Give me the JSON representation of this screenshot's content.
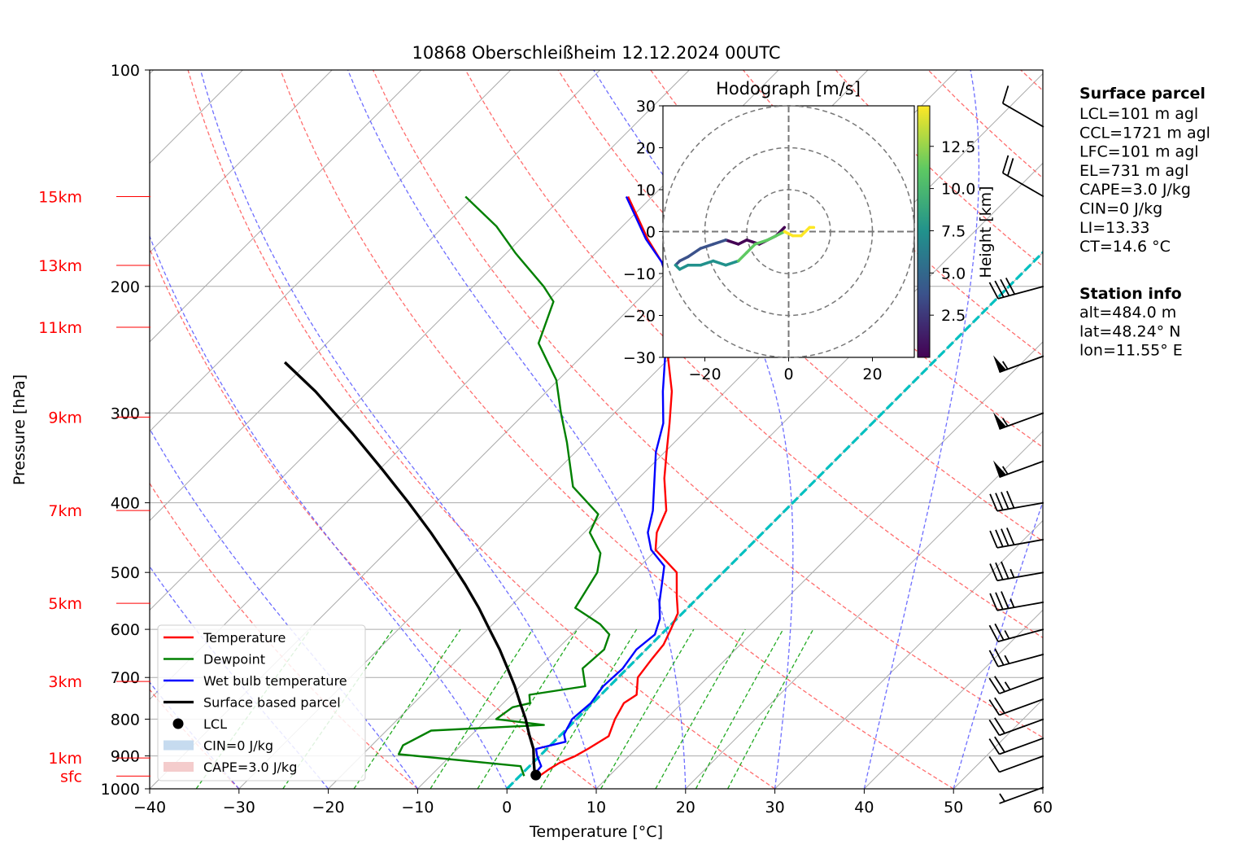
{
  "chart_data": {
    "type": "skew-t",
    "title": "10868 Oberschleißheim 12.12.2024 00UTC",
    "xlabel": "Temperature [°C]",
    "ylabel": "Pressure [hPa]",
    "xlim": [
      -40,
      60
    ],
    "ylim": [
      1000,
      100
    ],
    "x_ticks": [
      "−40",
      "−30",
      "−20",
      "−10",
      "0",
      "10",
      "20",
      "30",
      "40",
      "50",
      "60"
    ],
    "y_ticks": [
      "100",
      "200",
      "300",
      "400",
      "500",
      "600",
      "700",
      "800",
      "900",
      "1000"
    ],
    "y_tick_values": [
      100,
      200,
      300,
      400,
      500,
      600,
      700,
      800,
      900,
      1000
    ],
    "grid": true,
    "height_marks": [
      {
        "label": "15km",
        "p": 150
      },
      {
        "label": "13km",
        "p": 187
      },
      {
        "label": "11km",
        "p": 228
      },
      {
        "label": "9km",
        "p": 304
      },
      {
        "label": "7km",
        "p": 410
      },
      {
        "label": "5km",
        "p": 552
      },
      {
        "label": "3km",
        "p": 709
      },
      {
        "label": "1km",
        "p": 906
      },
      {
        "label": "sfc",
        "p": 960
      }
    ],
    "series": [
      {
        "name": "Temperature",
        "color": "#ff0000",
        "points": [
          [
            2.2,
            960
          ],
          [
            2.5,
            940
          ],
          [
            3.0,
            920
          ],
          [
            4.0,
            900
          ],
          [
            4.6,
            880
          ],
          [
            5.5,
            845
          ],
          [
            4.3,
            800
          ],
          [
            3.5,
            760
          ],
          [
            4.0,
            740
          ],
          [
            2.2,
            700
          ],
          [
            1.7,
            660
          ],
          [
            1.4,
            630
          ],
          [
            0.5,
            600
          ],
          [
            -0.5,
            570
          ],
          [
            -2.5,
            540
          ],
          [
            -5.2,
            500
          ],
          [
            -10.1,
            465
          ],
          [
            -11.9,
            440
          ],
          [
            -13.3,
            410
          ],
          [
            -17.1,
            370
          ],
          [
            -19.8,
            340
          ],
          [
            -22.7,
            310
          ],
          [
            -26.0,
            280
          ],
          [
            -30.4,
            250
          ],
          [
            -34.2,
            220
          ],
          [
            -38.0,
            200
          ],
          [
            -41.6,
            185
          ],
          [
            -45.7,
            172
          ],
          [
            -49.4,
            160
          ],
          [
            -52.7,
            150
          ]
        ]
      },
      {
        "name": "Dewpoint",
        "color": "#008000",
        "points": [
          [
            0.5,
            960
          ],
          [
            -1.0,
            930
          ],
          [
            -16.0,
            895
          ],
          [
            -16.5,
            870
          ],
          [
            -15.0,
            830
          ],
          [
            -3.0,
            815
          ],
          [
            -9.0,
            800
          ],
          [
            -8.5,
            770
          ],
          [
            -7.0,
            760
          ],
          [
            -8.0,
            740
          ],
          [
            -2.7,
            720
          ],
          [
            -5.0,
            680
          ],
          [
            -4.7,
            640
          ],
          [
            -5.8,
            610
          ],
          [
            -8.0,
            590
          ],
          [
            -12.6,
            560
          ],
          [
            -14.1,
            500
          ],
          [
            -15.9,
            470
          ],
          [
            -19.4,
            440
          ],
          [
            -20.5,
            415
          ],
          [
            -26.4,
            380
          ],
          [
            -32.0,
            330
          ],
          [
            -36.0,
            300
          ],
          [
            -40.2,
            270
          ],
          [
            -46.3,
            240
          ],
          [
            -49.3,
            210
          ],
          [
            -52.1,
            200
          ],
          [
            -58.9,
            180
          ],
          [
            -64.1,
            165
          ],
          [
            -70.9,
            150
          ]
        ]
      },
      {
        "name": "Wet bulb temperature",
        "color": "#0000ff",
        "points": [
          [
            1.5,
            960
          ],
          [
            1.3,
            930
          ],
          [
            -0.3,
            900
          ],
          [
            -1.2,
            880
          ],
          [
            1.3,
            860
          ],
          [
            0.3,
            840
          ],
          [
            -0.5,
            800
          ],
          [
            -0.2,
            760
          ],
          [
            -0.7,
            720
          ],
          [
            -0.5,
            680
          ],
          [
            -1.1,
            640
          ],
          [
            -0.7,
            610
          ],
          [
            -1.9,
            580
          ],
          [
            -3.8,
            550
          ],
          [
            -5.5,
            520
          ],
          [
            -7.3,
            490
          ],
          [
            -10.6,
            465
          ],
          [
            -12.9,
            440
          ],
          [
            -14.8,
            410
          ],
          [
            -18.2,
            370
          ],
          [
            -21.0,
            340
          ],
          [
            -23.4,
            310
          ],
          [
            -27.0,
            280
          ],
          [
            -30.7,
            250
          ],
          [
            -34.5,
            220
          ],
          [
            -38.0,
            200
          ],
          [
            -41.6,
            185
          ],
          [
            -45.9,
            172
          ],
          [
            -49.6,
            160
          ],
          [
            -52.9,
            150
          ]
        ]
      },
      {
        "name": "Surface based parcel",
        "color": "#000000",
        "points": [
          [
            1.7,
            960
          ],
          [
            0.1,
            920
          ],
          [
            -1.5,
            880
          ],
          [
            -3.6,
            840
          ],
          [
            -5.7,
            800
          ],
          [
            -8.1,
            760
          ],
          [
            -10.6,
            720
          ],
          [
            -13.4,
            680
          ],
          [
            -16.4,
            640
          ],
          [
            -19.8,
            600
          ],
          [
            -23.4,
            560
          ],
          [
            -27.5,
            520
          ],
          [
            -32.1,
            480
          ],
          [
            -37.2,
            440
          ],
          [
            -43.0,
            400
          ],
          [
            -49.6,
            360
          ],
          [
            -57.1,
            320
          ],
          [
            -65.9,
            280
          ],
          [
            -72.6,
            255
          ]
        ]
      }
    ],
    "legend": [
      {
        "label": "Temperature",
        "kind": "line",
        "color": "#ff0000"
      },
      {
        "label": "Dewpoint",
        "kind": "line",
        "color": "#008000"
      },
      {
        "label": "Wet bulb temperature",
        "kind": "line",
        "color": "#0000ff"
      },
      {
        "label": "Surface based parcel",
        "kind": "line",
        "color": "#000000"
      },
      {
        "label": "LCL",
        "kind": "dot",
        "color": "#000000"
      },
      {
        "label": "CIN=0 J/kg",
        "kind": "patch",
        "color": "#c6dbef"
      },
      {
        "label": "CAPE=3.0 J/kg",
        "kind": "patch",
        "color": "#f4cccc"
      }
    ],
    "legend_position": "lower-left",
    "lcl": {
      "t": 1.7,
      "p": 957
    },
    "zero_isotherm": {
      "color": "#00c0c0"
    },
    "wind_barbs": [
      {
        "p": 995,
        "speed_kt": 5,
        "dir_deg": 250
      },
      {
        "p": 900,
        "speed_kt": 10,
        "dir_deg": 250
      },
      {
        "p": 850,
        "speed_kt": 20,
        "dir_deg": 250
      },
      {
        "p": 800,
        "speed_kt": 20,
        "dir_deg": 250
      },
      {
        "p": 750,
        "speed_kt": 20,
        "dir_deg": 250
      },
      {
        "p": 700,
        "speed_kt": 25,
        "dir_deg": 250
      },
      {
        "p": 650,
        "speed_kt": 25,
        "dir_deg": 255
      },
      {
        "p": 600,
        "speed_kt": 25,
        "dir_deg": 255
      },
      {
        "p": 550,
        "speed_kt": 35,
        "dir_deg": 260
      },
      {
        "p": 500,
        "speed_kt": 35,
        "dir_deg": 260
      },
      {
        "p": 450,
        "speed_kt": 40,
        "dir_deg": 260
      },
      {
        "p": 400,
        "speed_kt": 40,
        "dir_deg": 260
      },
      {
        "p": 350,
        "speed_kt": 55,
        "dir_deg": 250
      },
      {
        "p": 300,
        "speed_kt": 55,
        "dir_deg": 250
      },
      {
        "p": 250,
        "speed_kt": 55,
        "dir_deg": 250
      },
      {
        "p": 200,
        "speed_kt": 40,
        "dir_deg": 255
      },
      {
        "p": 150,
        "speed_kt": 20,
        "dir_deg": 300
      },
      {
        "p": 120,
        "speed_kt": 10,
        "dir_deg": 300
      }
    ],
    "hodograph": {
      "title": "Hodograph [m/s]",
      "xlim": [
        -30,
        30
      ],
      "ylim": [
        -30,
        30
      ],
      "x_ticks": [
        "−20",
        "0",
        "20"
      ],
      "y_ticks": [
        "30",
        "20",
        "10",
        "0",
        "−10",
        "−20",
        "−30"
      ],
      "rings_ms": [
        10,
        20,
        30
      ],
      "colorbar_label": "Height [km]",
      "colorbar_ticks": [
        "2.5",
        "5.0",
        "7.5",
        "10.0",
        "12.5"
      ],
      "colormap": [
        "#440154",
        "#3b528b",
        "#21918c",
        "#5ec962",
        "#fde725"
      ],
      "uv": [
        [
          -1,
          1
        ],
        [
          -3,
          -1
        ],
        [
          -5,
          -2
        ],
        [
          -7,
          -3
        ],
        [
          -10,
          -2
        ],
        [
          -12,
          -3
        ],
        [
          -15,
          -2
        ],
        [
          -18,
          -3
        ],
        [
          -21,
          -4
        ],
        [
          -24,
          -6
        ],
        [
          -26,
          -7
        ],
        [
          -27,
          -8
        ],
        [
          -26,
          -9
        ],
        [
          -24,
          -8
        ],
        [
          -21,
          -8
        ],
        [
          -18,
          -7
        ],
        [
          -15,
          -8
        ],
        [
          -12,
          -7
        ],
        [
          -10,
          -5
        ],
        [
          -8,
          -3
        ],
        [
          -5,
          -2
        ],
        [
          -3,
          -1
        ],
        [
          -1,
          0
        ],
        [
          1,
          -1
        ],
        [
          3,
          -1
        ],
        [
          4,
          0
        ],
        [
          5,
          1
        ],
        [
          6,
          1
        ]
      ]
    },
    "surface_parcel": {
      "heading": "Surface parcel",
      "lines": [
        "LCL=101 m agl",
        "CCL=1721 m agl",
        "LFC=101 m agl",
        "EL=731 m agl",
        "CAPE=3.0 J/kg",
        "CIN=0 J/kg",
        "LI=13.33",
        "CT=14.6 °C"
      ]
    },
    "station_info": {
      "heading": "Station info",
      "lines": [
        "alt=484.0 m",
        "lat=48.24° N",
        "lon=11.55° E"
      ]
    }
  }
}
